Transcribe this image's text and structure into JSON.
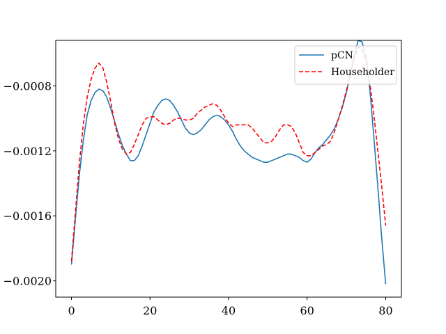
{
  "chart_data": {
    "type": "line",
    "title": "",
    "xlabel": "",
    "ylabel": "",
    "xlim": [
      -4,
      84
    ],
    "ylim": [
      -0.0021,
      -0.00052
    ],
    "xticks": [
      {
        "value": 0,
        "label": "0"
      },
      {
        "value": 20,
        "label": "20"
      },
      {
        "value": 40,
        "label": "40"
      },
      {
        "value": 60,
        "label": "60"
      },
      {
        "value": 80,
        "label": "80"
      }
    ],
    "yticks": [
      {
        "value": -0.0008,
        "label": "−0.0008"
      },
      {
        "value": -0.0012,
        "label": "−0.0012"
      },
      {
        "value": -0.0016,
        "label": "−0.0016"
      },
      {
        "value": -0.002,
        "label": "−0.0020"
      }
    ],
    "grid": false,
    "legend_position": "top-right",
    "series": [
      {
        "name": "pCN",
        "color": "#1f77b4",
        "dash": "solid",
        "x": [
          0,
          1,
          2,
          3,
          4,
          5,
          6,
          7,
          8,
          9,
          10,
          11,
          12,
          13,
          14,
          15,
          16,
          17,
          18,
          19,
          20,
          21,
          22,
          23,
          24,
          25,
          26,
          27,
          28,
          29,
          30,
          31,
          32,
          33,
          34,
          35,
          36,
          37,
          38,
          39,
          40,
          41,
          42,
          43,
          44,
          45,
          46,
          47,
          48,
          49,
          50,
          51,
          52,
          53,
          54,
          55,
          56,
          57,
          58,
          59,
          60,
          61,
          62,
          63,
          64,
          65,
          66,
          67,
          68,
          69,
          70,
          71,
          72,
          73,
          74,
          75,
          76,
          77,
          78,
          79,
          80
        ],
        "y": [
          -0.0019,
          -0.00162,
          -0.00135,
          -0.00114,
          -0.00098,
          -0.00089,
          -0.00084,
          -0.00082,
          -0.00083,
          -0.00087,
          -0.00094,
          -0.00102,
          -0.0011,
          -0.00117,
          -0.00122,
          -0.00126,
          -0.00126,
          -0.00123,
          -0.00117,
          -0.0011,
          -0.00103,
          -0.00096,
          -0.00092,
          -0.00089,
          -0.00088,
          -0.00089,
          -0.00092,
          -0.00096,
          -0.00101,
          -0.00106,
          -0.00109,
          -0.0011,
          -0.00109,
          -0.00107,
          -0.00104,
          -0.00101,
          -0.00099,
          -0.00098,
          -0.00099,
          -0.00101,
          -0.00104,
          -0.00108,
          -0.00113,
          -0.00117,
          -0.0012,
          -0.00122,
          -0.00124,
          -0.00125,
          -0.00126,
          -0.00127,
          -0.00127,
          -0.00126,
          -0.00125,
          -0.00124,
          -0.00123,
          -0.00122,
          -0.00122,
          -0.00123,
          -0.00124,
          -0.00126,
          -0.00127,
          -0.00125,
          -0.00121,
          -0.00118,
          -0.00116,
          -0.00113,
          -0.0011,
          -0.00106,
          -0.001,
          -0.00093,
          -0.00084,
          -0.00073,
          -0.00061,
          -0.00052,
          -0.00053,
          -0.00062,
          -0.00083,
          -0.00112,
          -0.00142,
          -0.00174,
          -0.00202
        ]
      },
      {
        "name": "Householder",
        "color": "#ff0000",
        "dash": "dashed",
        "x": [
          0,
          1,
          2,
          3,
          4,
          5,
          6,
          7,
          8,
          9,
          10,
          11,
          12,
          13,
          14,
          15,
          16,
          17,
          18,
          19,
          20,
          21,
          22,
          23,
          24,
          25,
          26,
          27,
          28,
          29,
          30,
          31,
          32,
          33,
          34,
          35,
          36,
          37,
          38,
          39,
          40,
          41,
          42,
          43,
          44,
          45,
          46,
          47,
          48,
          49,
          50,
          51,
          52,
          53,
          54,
          55,
          56,
          57,
          58,
          59,
          60,
          61,
          62,
          63,
          64,
          65,
          66,
          67,
          68,
          69,
          70,
          71,
          72,
          73,
          74,
          75,
          76,
          77,
          78,
          79,
          80
        ],
        "y": [
          -0.00188,
          -0.00158,
          -0.00128,
          -0.00104,
          -0.00087,
          -0.00076,
          -0.00069,
          -0.00066,
          -0.00069,
          -0.00078,
          -0.0009,
          -0.00103,
          -0.00113,
          -0.00119,
          -0.00122,
          -0.00121,
          -0.00116,
          -0.0011,
          -0.00104,
          -0.001,
          -0.00099,
          -0.00099,
          -0.00101,
          -0.00103,
          -0.00104,
          -0.00103,
          -0.00101,
          -0.001,
          -0.001,
          -0.00101,
          -0.00101,
          -0.001,
          -0.00097,
          -0.00095,
          -0.00093,
          -0.00092,
          -0.00091,
          -0.00092,
          -0.00095,
          -0.00099,
          -0.00103,
          -0.00105,
          -0.00104,
          -0.00104,
          -0.00104,
          -0.00104,
          -0.00106,
          -0.00109,
          -0.00112,
          -0.00115,
          -0.00115,
          -0.00114,
          -0.00111,
          -0.00107,
          -0.00104,
          -0.00104,
          -0.00105,
          -0.00109,
          -0.00115,
          -0.00121,
          -0.00123,
          -0.00123,
          -0.00121,
          -0.00119,
          -0.00117,
          -0.00116,
          -0.00114,
          -0.00108,
          -0.001,
          -0.00092,
          -0.00083,
          -0.00072,
          -0.00063,
          -0.00056,
          -0.00058,
          -0.00065,
          -0.00079,
          -0.00098,
          -0.0012,
          -0.00142,
          -0.00166
        ]
      }
    ]
  }
}
